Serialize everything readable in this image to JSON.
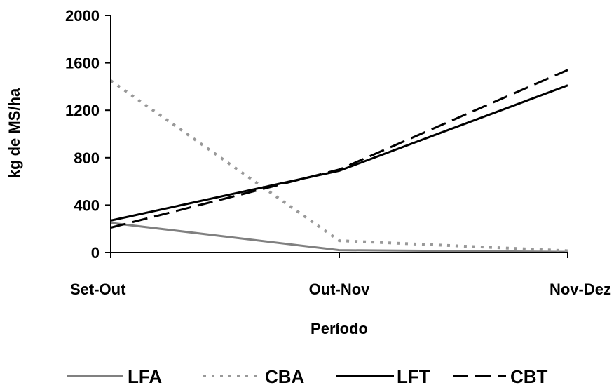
{
  "chart_data": {
    "type": "line",
    "xlabel": "Período",
    "ylabel": "kg de MS/ha",
    "categories": [
      "Set-Out",
      "Out-Nov",
      "Nov-Dez"
    ],
    "ylim": [
      0,
      2000
    ],
    "yticks": [
      0,
      400,
      800,
      1200,
      1600,
      2000
    ],
    "grid": false,
    "legend_position": "bottom",
    "series": [
      {
        "name": "LFA",
        "values": [
          250,
          20,
          5
        ],
        "color": "#808080",
        "style": "solid"
      },
      {
        "name": "CBA",
        "values": [
          1450,
          100,
          15
        ],
        "color": "#999999",
        "style": "dotted"
      },
      {
        "name": "LFT",
        "values": [
          270,
          690,
          1410
        ],
        "color": "#000000",
        "style": "solid"
      },
      {
        "name": "CBT",
        "values": [
          210,
          700,
          1540
        ],
        "color": "#000000",
        "style": "dashed"
      }
    ]
  }
}
